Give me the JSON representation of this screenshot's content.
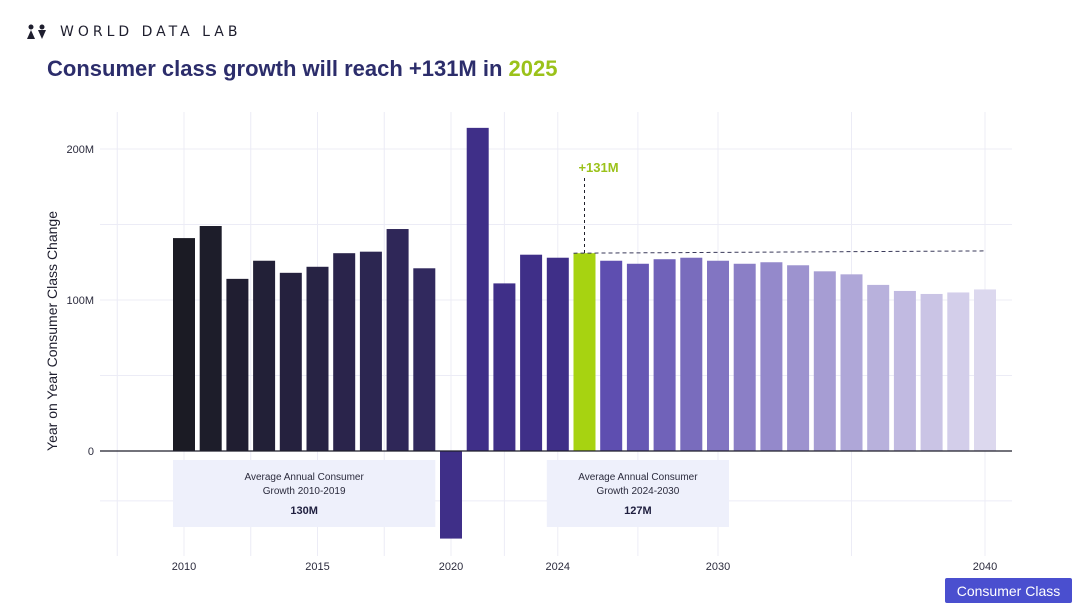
{
  "brand": {
    "name": "WORLD DATA LAB",
    "logo_icon": "people-logo-icon"
  },
  "header": {
    "title_prefix": "Consumer class growth will reach +131M in ",
    "title_highlight": "2025",
    "highlight_color": "#9bc21a",
    "title_color": "#2c2d6b"
  },
  "button": {
    "label": "Consumer Class",
    "color": "#4a4fcf"
  },
  "chart_data": {
    "type": "bar",
    "title": "Consumer class growth will reach +131M in 2025",
    "xlabel": "",
    "ylabel": "Year on Year Consumer Class Change",
    "ylim": [
      -58,
      225
    ],
    "grid": true,
    "categories": [
      2010,
      2011,
      2012,
      2013,
      2014,
      2015,
      2016,
      2017,
      2018,
      2019,
      2020,
      2021,
      2022,
      2023,
      2024,
      2025,
      2026,
      2027,
      2028,
      2029,
      2030,
      2031,
      2032,
      2033,
      2034,
      2035,
      2036,
      2037,
      2038,
      2039,
      2040
    ],
    "values": [
      141,
      149,
      114,
      126,
      118,
      122,
      131,
      132,
      147,
      121,
      -58,
      214,
      111,
      130,
      128,
      131,
      126,
      124,
      127,
      128,
      126,
      124,
      125,
      123,
      119,
      117,
      110,
      106,
      104,
      105,
      107
    ],
    "highlight_category": 2025,
    "highlight_color": "#a7d311",
    "y_ticks": [
      {
        "value": 0,
        "label": "0"
      },
      {
        "value": 100,
        "label": "100M"
      },
      {
        "value": 200,
        "label": "200M"
      }
    ],
    "x_ticks": [
      {
        "value": 2010,
        "label": "2010"
      },
      {
        "value": 2015,
        "label": "2015"
      },
      {
        "value": 2020,
        "label": "2020"
      },
      {
        "value": 2024,
        "label": "2024"
      },
      {
        "value": 2030,
        "label": "2030"
      },
      {
        "value": 2040,
        "label": "2040"
      }
    ],
    "annotations": [
      {
        "text": "+131M",
        "year": 2025,
        "value": 131,
        "color": "#9bc21a",
        "reference_line_to": 2040
      }
    ],
    "average_boxes": [
      {
        "line1": "Average Annual Consumer",
        "line2": "Growth 2010-2019",
        "value_label": "130M",
        "from": 2010,
        "to": 2019
      },
      {
        "line1": "Average Annual Consumer",
        "line2": "Growth 2024-2030",
        "value_label": "127M",
        "from": 2024,
        "to": 2030
      }
    ]
  }
}
